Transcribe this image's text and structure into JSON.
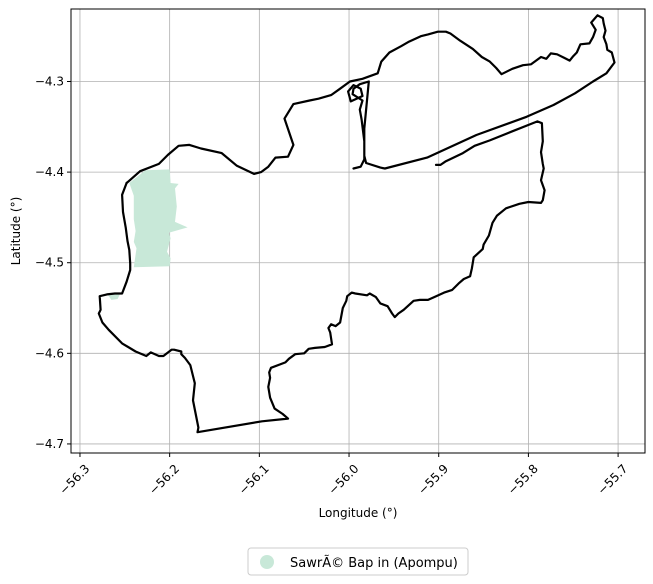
{
  "chart_data": {
    "type": "map",
    "xlabel": "Longitude (°)",
    "ylabel": "Latitude (°)",
    "xlim": [
      -56.31,
      -55.67
    ],
    "ylim": [
      -4.71,
      -4.22
    ],
    "x_ticks": [
      "−56.3",
      "−56.2",
      "−56.1",
      "−56.0",
      "−55.9",
      "−55.8",
      "−55.7"
    ],
    "y_ticks": [
      "−4.3",
      "−4.4",
      "−4.5",
      "−4.6",
      "−4.7"
    ],
    "x_tick_values": [
      -56.3,
      -56.2,
      -56.1,
      -56.0,
      -55.9,
      -55.8,
      -55.7
    ],
    "y_tick_values": [
      -4.3,
      -4.4,
      -4.5,
      -4.6,
      -4.7
    ],
    "grid": true,
    "legend": {
      "placement": "bottom-center",
      "entries": [
        {
          "label": "SawrÃ© Bap in (Apompu)",
          "color": "#c8e8d8"
        }
      ]
    },
    "filled_area": {
      "color": "#c8e8d8",
      "coords": [
        [
          -56.227,
          -4.398
        ],
        [
          -56.2,
          -4.397
        ],
        [
          -56.199,
          -4.412
        ],
        [
          -56.19,
          -4.413
        ],
        [
          -56.194,
          -4.418
        ],
        [
          -56.192,
          -4.438
        ],
        [
          -56.194,
          -4.455
        ],
        [
          -56.18,
          -4.461
        ],
        [
          -56.201,
          -4.467
        ],
        [
          -56.199,
          -4.473
        ],
        [
          -56.203,
          -4.488
        ],
        [
          -56.199,
          -4.495
        ],
        [
          -56.2,
          -4.504
        ],
        [
          -56.24,
          -4.505
        ],
        [
          -56.237,
          -4.484
        ],
        [
          -56.24,
          -4.477
        ],
        [
          -56.238,
          -4.465
        ],
        [
          -56.24,
          -4.452
        ],
        [
          -56.24,
          -4.426
        ],
        [
          -56.245,
          -4.412
        ],
        [
          -56.227,
          -4.398
        ]
      ],
      "coords_small": [
        [
          -56.27,
          -4.534
        ],
        [
          -56.255,
          -4.534
        ],
        [
          -56.258,
          -4.54
        ],
        [
          -56.265,
          -4.541
        ],
        [
          -56.27,
          -4.534
        ]
      ]
    },
    "outlines": [
      [
        [
          -56.248,
          -4.412
        ],
        [
          -56.233,
          -4.399
        ],
        [
          -56.212,
          -4.391
        ],
        [
          -56.202,
          -4.381
        ],
        [
          -56.19,
          -4.371
        ],
        [
          -56.178,
          -4.37
        ],
        [
          -56.165,
          -4.374
        ],
        [
          -56.142,
          -4.379
        ],
        [
          -56.125,
          -4.393
        ],
        [
          -56.106,
          -4.402
        ],
        [
          -56.098,
          -4.4
        ],
        [
          -56.09,
          -4.394
        ],
        [
          -56.082,
          -4.384
        ],
        [
          -56.068,
          -4.383
        ],
        [
          -56.062,
          -4.37
        ],
        [
          -56.072,
          -4.341
        ],
        [
          -56.062,
          -4.325
        ],
        [
          -56.044,
          -4.321
        ],
        [
          -56.034,
          -4.319
        ],
        [
          -56.02,
          -4.315
        ],
        [
          -56.01,
          -4.308
        ],
        [
          -55.999,
          -4.3
        ],
        [
          -55.985,
          -4.297
        ],
        [
          -55.968,
          -4.291
        ],
        [
          -55.964,
          -4.278
        ],
        [
          -55.955,
          -4.268
        ],
        [
          -55.942,
          -4.261
        ],
        [
          -55.933,
          -4.256
        ],
        [
          -55.92,
          -4.25
        ],
        [
          -55.912,
          -4.248
        ],
        [
          -55.901,
          -4.245
        ],
        [
          -55.892,
          -4.245
        ],
        [
          -55.887,
          -4.247
        ],
        [
          -55.876,
          -4.255
        ],
        [
          -55.862,
          -4.264
        ],
        [
          -55.852,
          -4.273
        ],
        [
          -55.843,
          -4.278
        ],
        [
          -55.836,
          -4.285
        ],
        [
          -55.83,
          -4.292
        ],
        [
          -55.818,
          -4.286
        ],
        [
          -55.806,
          -4.282
        ],
        [
          -55.797,
          -4.281
        ],
        [
          -55.786,
          -4.273
        ],
        [
          -55.78,
          -4.275
        ],
        [
          -55.775,
          -4.269
        ],
        [
          -55.768,
          -4.27
        ],
        [
          -55.76,
          -4.274
        ],
        [
          -55.754,
          -4.277
        ],
        [
          -55.75,
          -4.272
        ],
        [
          -55.746,
          -4.268
        ],
        [
          -55.742,
          -4.259
        ],
        [
          -55.732,
          -4.258
        ],
        [
          -55.728,
          -4.251
        ],
        [
          -55.725,
          -4.243
        ],
        [
          -55.73,
          -4.235
        ],
        [
          -55.723,
          -4.227
        ],
        [
          -55.717,
          -4.23
        ],
        [
          -55.716,
          -4.236
        ],
        [
          -55.714,
          -4.244
        ],
        [
          -55.716,
          -4.251
        ],
        [
          -55.713,
          -4.259
        ],
        [
          -55.712,
          -4.265
        ],
        [
          -55.707,
          -4.268
        ],
        [
          -55.704,
          -4.279
        ],
        [
          -55.713,
          -4.291
        ],
        [
          -55.728,
          -4.3
        ],
        [
          -55.748,
          -4.313
        ],
        [
          -55.772,
          -4.326
        ],
        [
          -55.802,
          -4.339
        ],
        [
          -55.858,
          -4.359
        ],
        [
          -55.913,
          -4.384
        ],
        [
          -55.96,
          -4.396
        ],
        [
          -55.965,
          -4.395
        ],
        [
          -55.981,
          -4.39
        ],
        [
          -55.983,
          -4.382
        ],
        [
          -55.983,
          -4.352
        ],
        [
          -55.978,
          -4.3
        ],
        [
          -55.988,
          -4.303
        ],
        [
          -55.995,
          -4.308
        ],
        [
          -55.996,
          -4.314
        ],
        [
          -55.985,
          -4.321
        ],
        [
          -55.988,
          -4.331
        ],
        [
          -55.986,
          -4.342
        ],
        [
          -55.983,
          -4.366
        ],
        [
          -55.983,
          -4.386
        ],
        [
          -55.987,
          -4.394
        ],
        [
          -55.995,
          -4.396
        ],
        [
          -55.995,
          -4.396
        ]
      ],
      [
        [
          -55.903,
          -4.392
        ],
        [
          -55.898,
          -4.392
        ],
        [
          -55.892,
          -4.388
        ],
        [
          -55.873,
          -4.379
        ],
        [
          -55.86,
          -4.371
        ],
        [
          -55.843,
          -4.365
        ],
        [
          -55.818,
          -4.355
        ],
        [
          -55.79,
          -4.344
        ],
        [
          -55.785,
          -4.346
        ],
        [
          -55.784,
          -4.366
        ],
        [
          -55.786,
          -4.378
        ],
        [
          -55.784,
          -4.391
        ],
        [
          -55.783,
          -4.396
        ],
        [
          -55.786,
          -4.409
        ],
        [
          -55.782,
          -4.42
        ],
        [
          -55.784,
          -4.431
        ],
        [
          -55.786,
          -4.434
        ],
        [
          -55.8,
          -4.433
        ],
        [
          -55.81,
          -4.435
        ],
        [
          -55.825,
          -4.44
        ],
        [
          -55.835,
          -4.448
        ],
        [
          -55.84,
          -4.456
        ],
        [
          -55.844,
          -4.47
        ],
        [
          -55.85,
          -4.48
        ],
        [
          -55.851,
          -4.485
        ],
        [
          -55.861,
          -4.494
        ],
        [
          -55.863,
          -4.506
        ],
        [
          -55.865,
          -4.515
        ],
        [
          -55.872,
          -4.518
        ],
        [
          -55.878,
          -4.523
        ],
        [
          -55.885,
          -4.53
        ],
        [
          -55.894,
          -4.533
        ],
        [
          -55.905,
          -4.538
        ],
        [
          -55.912,
          -4.541
        ],
        [
          -55.921,
          -4.541
        ],
        [
          -55.928,
          -4.542
        ],
        [
          -55.939,
          -4.552
        ],
        [
          -55.945,
          -4.556
        ],
        [
          -55.949,
          -4.56
        ],
        [
          -55.952,
          -4.556
        ],
        [
          -55.957,
          -4.548
        ],
        [
          -55.965,
          -4.545
        ],
        [
          -55.97,
          -4.538
        ],
        [
          -55.977,
          -4.534
        ],
        [
          -55.98,
          -4.536
        ],
        [
          -55.993,
          -4.534
        ],
        [
          -55.997,
          -4.533
        ],
        [
          -56.002,
          -4.537
        ],
        [
          -56.003,
          -4.542
        ],
        [
          -56.007,
          -4.55
        ],
        [
          -56.01,
          -4.566
        ],
        [
          -56.015,
          -4.57
        ],
        [
          -56.02,
          -4.568
        ],
        [
          -56.023,
          -4.572
        ],
        [
          -56.021,
          -4.577
        ],
        [
          -56.019,
          -4.59
        ],
        [
          -56.027,
          -4.593
        ],
        [
          -56.038,
          -4.594
        ],
        [
          -56.045,
          -4.595
        ],
        [
          -56.05,
          -4.6
        ],
        [
          -56.06,
          -4.601
        ],
        [
          -56.067,
          -4.606
        ],
        [
          -56.071,
          -4.61
        ],
        [
          -56.087,
          -4.616
        ],
        [
          -56.089,
          -4.621
        ],
        [
          -56.088,
          -4.627
        ],
        [
          -56.09,
          -4.637
        ],
        [
          -56.088,
          -4.649
        ],
        [
          -56.083,
          -4.661
        ],
        [
          -56.074,
          -4.667
        ],
        [
          -56.068,
          -4.672
        ],
        [
          -56.097,
          -4.675
        ],
        [
          -56.169,
          -4.687
        ],
        [
          -56.168,
          -4.682
        ],
        [
          -56.171,
          -4.667
        ],
        [
          -56.174,
          -4.652
        ],
        [
          -56.172,
          -4.633
        ],
        [
          -56.174,
          -4.625
        ],
        [
          -56.177,
          -4.613
        ],
        [
          -56.183,
          -4.605
        ],
        [
          -56.187,
          -4.601
        ],
        [
          -56.187,
          -4.598
        ],
        [
          -56.195,
          -4.596
        ],
        [
          -56.198,
          -4.596
        ],
        [
          -56.207,
          -4.603
        ],
        [
          -56.212,
          -4.603
        ],
        [
          -56.221,
          -4.599
        ],
        [
          -56.226,
          -4.603
        ],
        [
          -56.238,
          -4.598
        ],
        [
          -56.253,
          -4.589
        ],
        [
          -56.268,
          -4.574
        ],
        [
          -56.275,
          -4.566
        ],
        [
          -56.279,
          -4.556
        ],
        [
          -56.277,
          -4.552
        ],
        [
          -56.278,
          -4.537
        ],
        [
          -56.27,
          -4.535
        ],
        [
          -56.261,
          -4.534
        ],
        [
          -56.253,
          -4.534
        ],
        [
          -56.248,
          -4.521
        ],
        [
          -56.244,
          -4.508
        ],
        [
          -56.244,
          -4.501
        ],
        [
          -56.245,
          -4.486
        ],
        [
          -56.247,
          -4.476
        ],
        [
          -56.249,
          -4.461
        ],
        [
          -56.252,
          -4.444
        ],
        [
          -56.253,
          -4.425
        ],
        [
          -56.248,
          -4.412
        ]
      ],
      [
        [
          -55.985,
          -4.316
        ],
        [
          -55.987,
          -4.308
        ],
        [
          -55.995,
          -4.304
        ],
        [
          -56.001,
          -4.311
        ],
        [
          -55.998,
          -4.322
        ],
        [
          -55.985,
          -4.316
        ]
      ]
    ]
  }
}
